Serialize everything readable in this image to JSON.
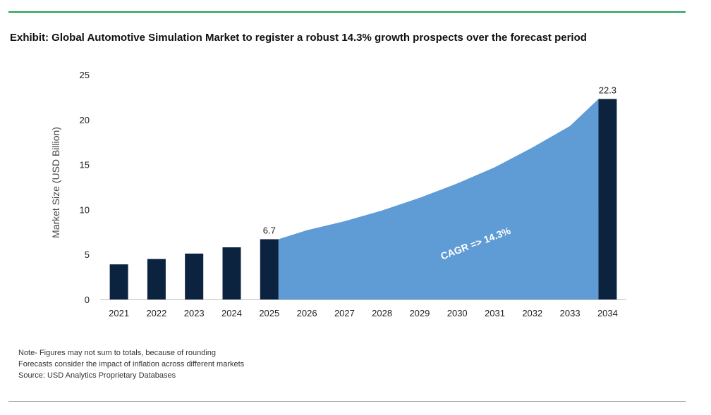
{
  "exhibit_title": "Exhibit: Global Automotive Simulation Market to register a robust 14.3% growth prospects over the forecast period",
  "notes": [
    "Note- Figures may not sum to totals, because of rounding",
    "Forecasts consider the impact of inflation across different markets",
    "Source: USD Analytics Proprietary Databases"
  ],
  "colors": {
    "bar": "#0c2340",
    "area": "#5f9bd4",
    "accent_rule": "#1f9b52"
  },
  "chart_data": {
    "type": "bar",
    "title": "",
    "xlabel": "",
    "ylabel": "Market Size (USD Billion)",
    "ylim": [
      0,
      25
    ],
    "yticks": [
      0,
      5,
      10,
      15,
      20,
      25
    ],
    "grid": false,
    "categories": [
      "2021",
      "2022",
      "2023",
      "2024",
      "2025",
      "2026",
      "2027",
      "2028",
      "2029",
      "2030",
      "2031",
      "2032",
      "2033",
      "2034"
    ],
    "bars": [
      {
        "category": "2021",
        "value": 3.9
      },
      {
        "category": "2022",
        "value": 4.5
      },
      {
        "category": "2023",
        "value": 5.1
      },
      {
        "category": "2024",
        "value": 5.8
      },
      {
        "category": "2025",
        "value": 6.7,
        "label": "6.7"
      },
      {
        "category": "2034",
        "value": 22.3,
        "label": "22.3"
      }
    ],
    "area": {
      "values": [
        6.7,
        7.7,
        8.7,
        9.9,
        11.3,
        12.9,
        14.7,
        16.9,
        19.3,
        22.3
      ],
      "categories": [
        "2025",
        "2026",
        "2027",
        "2028",
        "2029",
        "2030",
        "2031",
        "2032",
        "2033",
        "2034"
      ],
      "annotation": "CAGR => 14.3%"
    }
  }
}
